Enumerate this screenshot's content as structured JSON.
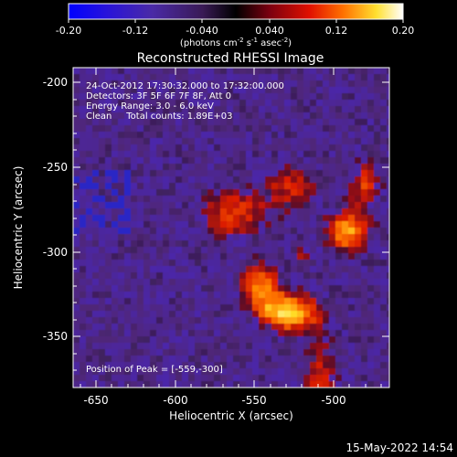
{
  "colorbar": {
    "tick_labels": [
      "-0.20",
      "-0.12",
      "-0.040",
      "0.040",
      "0.12",
      "0.20"
    ],
    "units_main": "(photons cm",
    "units_exp1": "-2",
    "units_mid1": " s",
    "units_exp2": "-1",
    "units_mid2": " asec",
    "units_exp3": "-2",
    "units_close": ")",
    "range": [
      -0.2,
      0.2
    ]
  },
  "plot": {
    "title": "Reconstructed RHESSI Image",
    "xlabel": "Heliocentric X (arcsec)",
    "ylabel": "Heliocentric Y (arcsec)",
    "x_ticks": [
      "-650",
      "-600",
      "-550",
      "-500"
    ],
    "y_ticks": [
      "-200",
      "-250",
      "-300",
      "-350"
    ],
    "xlim": [
      -665,
      -463
    ],
    "ylim": [
      -383,
      -188
    ]
  },
  "annotations": {
    "line1": "24-Oct-2012 17:30:32.000 to 17:32:00.000",
    "line2": "Detectors: 3F 5F 6F 7F 8F, Att 0",
    "line3": "Energy Range: 3.0 - 6.0 keV",
    "line4": "Clean     Total counts: 1.89E+03",
    "peak": "Position of Peak = [-559,-300]"
  },
  "footer": {
    "timestamp": "15-May-2022 14:54"
  },
  "colors": {
    "background": "#000000",
    "axes": "#ffffff",
    "colormap_low": "#0000ff",
    "colormap_mid": "#1a0a2e",
    "colormap_high": "#ffffff"
  }
}
